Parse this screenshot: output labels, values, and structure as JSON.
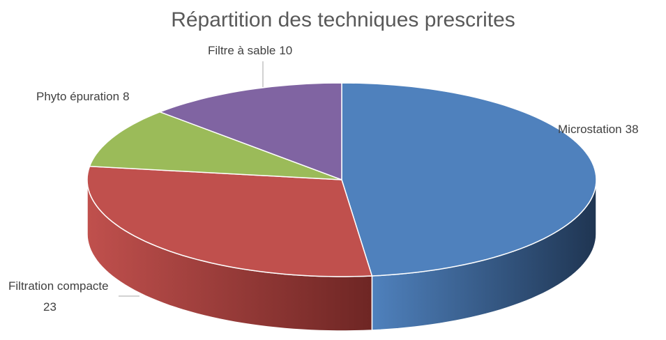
{
  "chart_data": {
    "type": "pie",
    "title": "Répartition des techniques prescrites",
    "categories": [
      "Microstation",
      "Filtration compacte",
      "Phyto épuration",
      "Filtre à sable"
    ],
    "values": [
      38,
      23,
      8,
      10
    ],
    "colors": [
      "#4f81bd",
      "#c0504d",
      "#9bbb59",
      "#8064a2"
    ],
    "side_colors": [
      "#1f3552",
      "#6e2624",
      "#5a6e30",
      "#4a3a60"
    ],
    "three_d": true
  }
}
